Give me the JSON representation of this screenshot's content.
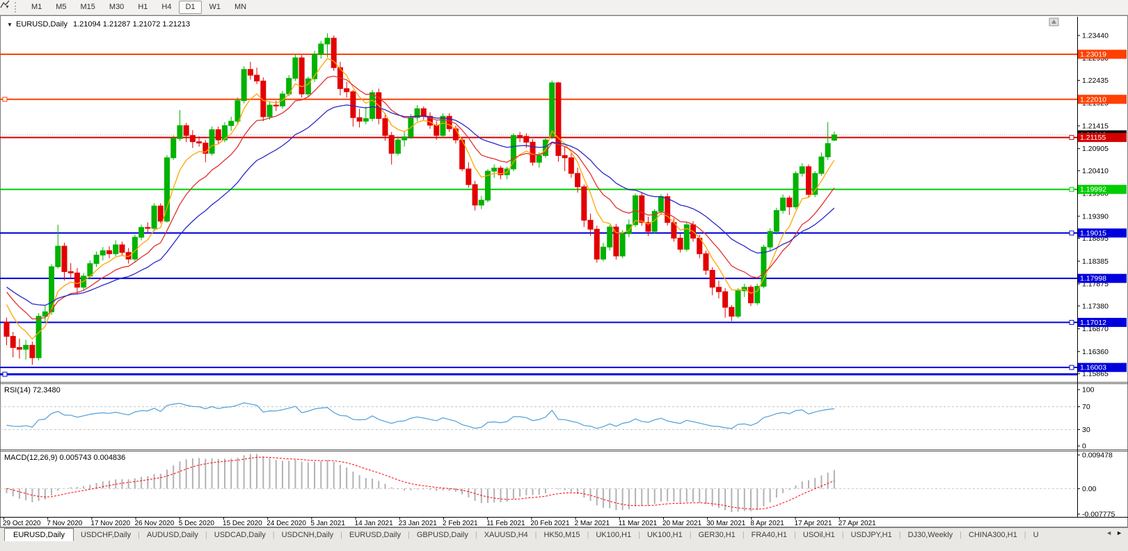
{
  "toolbar": {
    "tool_icon": "line-studies",
    "timeframes": [
      "M1",
      "M5",
      "M15",
      "M30",
      "H1",
      "H4",
      "D1",
      "W1",
      "MN"
    ],
    "active_timeframe": "D1"
  },
  "title": {
    "symbol": "EURUSD,Daily",
    "open": "1.21094",
    "high": "1.21287",
    "low": "1.21072",
    "close": "1.21213",
    "ohlc_text": "1.21094 1.21287 1.21072 1.21213",
    "dropdown_glyph": "▼"
  },
  "axis": {
    "main_ticks": [
      "1.23440",
      "1.22930",
      "1.22435",
      "1.21925",
      "1.21415",
      "1.20905",
      "1.20410",
      "1.19900",
      "1.19390",
      "1.18895",
      "1.18385",
      "1.17875",
      "1.17380",
      "1.16870",
      "1.16360",
      "1.15865"
    ],
    "rsi_ticks": [
      "100",
      "70",
      "30",
      "0"
    ],
    "macd_ticks": [
      "0.009478",
      "0.00",
      "-0.007775"
    ]
  },
  "current_price": {
    "value": "1.21213",
    "box_color": "#000000",
    "line_color": "#b4b4b4"
  },
  "hlines": [
    {
      "price": 1.23019,
      "label": "1.23019",
      "color": "#ff4000",
      "width": 2,
      "handle": "none"
    },
    {
      "price": 1.2201,
      "label": "1.22010",
      "color": "#ff4000",
      "width": 2,
      "handle": "left"
    },
    {
      "price": 1.21155,
      "label": "1.21155",
      "color": "#d40000",
      "width": 2,
      "handle": "right"
    },
    {
      "price": 1.19992,
      "label": "1.19992",
      "color": "#00ce00",
      "width": 2,
      "handle": "right"
    },
    {
      "price": 1.19015,
      "label": "1.19015",
      "color": "#0000dd",
      "width": 2,
      "handle": "right"
    },
    {
      "price": 1.17998,
      "label": "1.17998",
      "color": "#0000dd",
      "width": 2,
      "handle": "none"
    },
    {
      "price": 1.17012,
      "label": "1.17012",
      "color": "#0000dd",
      "width": 2,
      "handle": "right"
    },
    {
      "price": 1.16003,
      "label": "1.16003",
      "color": "#0000dd",
      "width": 2,
      "handle": "right"
    },
    {
      "price": 1.1585,
      "label": "",
      "color": "#0000dd",
      "width": 3,
      "handle": "left"
    }
  ],
  "dates": [
    "29 Oct 2020",
    "7 Nov 2020",
    "17 Nov 2020",
    "26 Nov 2020",
    "5 Dec 2020",
    "15 Dec 2020",
    "24 Dec 2020",
    "5 Jan 2021",
    "14 Jan 2021",
    "23 Jan 2021",
    "2 Feb 2021",
    "11 Feb 2021",
    "20 Feb 2021",
    "2 Mar 2021",
    "11 Mar 2021",
    "20 Mar 2021",
    "30 Mar 2021",
    "8 Apr 2021",
    "17 Apr 2021",
    "27 Apr 2021"
  ],
  "rsi": {
    "label": "RSI(14) 72.3480",
    "period": 14,
    "value": "72.3480",
    "levels": [
      70,
      30
    ],
    "line_color": "#4f9fd8",
    "level_color": "#c4c4c4"
  },
  "macd": {
    "label": "MACD(12,26,9) 0.005743 0.004836",
    "fast": 12,
    "slow": 26,
    "signal_period": 9,
    "macd_value": "0.005743",
    "signal_value": "0.004836",
    "hist_color": "#b2b2b2",
    "signal_color": "#ff0000",
    "zero_line_color": "#c4c4c4"
  },
  "tabs": {
    "items": [
      "EURUSD,Daily",
      "USDCHF,Daily",
      "AUDUSD,Daily",
      "USDCAD,Daily",
      "USDCNH,Daily",
      "EURUSD,Daily",
      "GBPUSD,Daily",
      "XAUUSD,H4",
      "HK50,M15",
      "UK100,H1",
      "UK100,H1",
      "GER30,H1",
      "FRA40,H1",
      "USOil,H1",
      "USDJPY,H1",
      "DJ30,Weekly",
      "CHINA300,H1",
      "U"
    ],
    "active_index": 0,
    "left_arrow": "◄",
    "right_arrow": "►"
  },
  "chart_data": {
    "type": "candlestick",
    "symbol": "EURUSD",
    "timeframe": "Daily",
    "up_color": "#00b200",
    "down_color": "#e30000",
    "moving_averages": [
      {
        "method": "ema",
        "period": 6,
        "color": "#ffa500"
      },
      {
        "method": "ema",
        "period": 13,
        "color": "#e03030"
      },
      {
        "method": "ema",
        "period": 26,
        "color": "#2828c8"
      }
    ],
    "pre_history_closes": [
      1.178,
      1.1785,
      1.179,
      1.174,
      1.172,
      1.1785,
      1.181,
      1.184,
      1.1845,
      1.184,
      1.187,
      1.193,
      1.196,
      1.184,
      1.183,
      1.182,
      1.179,
      1.19,
      1.1935,
      1.194,
      1.1985,
      1.194,
      1.1915,
      1.186,
      1.181,
      1.1815,
      1.179,
      1.1815,
      1.184,
      1.1865,
      1.18,
      1.1755,
      1.172,
      1.1665,
      1.163,
      1.17,
      1.172,
      1.1745,
      1.18,
      1.1785,
      1.176,
      1.1715,
      1.1725,
      1.174,
      1.1715,
      1.172,
      1.177,
      1.183,
      1.181,
      1.1825,
      1.187,
      1.1865,
      1.1825,
      1.184,
      1.186,
      1.183,
      1.179,
      1.1745,
      1.172,
      1.175
    ],
    "candles": [
      [
        1.1702,
        1.1712,
        1.165,
        1.167
      ],
      [
        1.167,
        1.168,
        1.1623,
        1.1645
      ],
      [
        1.1645,
        1.1665,
        1.162,
        1.1641
      ],
      [
        1.1641,
        1.1662,
        1.1618,
        1.165
      ],
      [
        1.165,
        1.1658,
        1.1606,
        1.1622
      ],
      [
        1.1622,
        1.1722,
        1.1616,
        1.1715
      ],
      [
        1.1715,
        1.174,
        1.17,
        1.1725
      ],
      [
        1.1725,
        1.1832,
        1.1718,
        1.1826
      ],
      [
        1.1826,
        1.192,
        1.1822,
        1.1872
      ],
      [
        1.1872,
        1.188,
        1.1795,
        1.1815
      ],
      [
        1.1815,
        1.1834,
        1.18,
        1.1812
      ],
      [
        1.1812,
        1.1823,
        1.1765,
        1.178
      ],
      [
        1.178,
        1.1812,
        1.1772,
        1.1805
      ],
      [
        1.1805,
        1.184,
        1.1798,
        1.1833
      ],
      [
        1.1833,
        1.186,
        1.1825,
        1.1852
      ],
      [
        1.1852,
        1.187,
        1.184,
        1.1862
      ],
      [
        1.1862,
        1.1872,
        1.1845,
        1.1855
      ],
      [
        1.1855,
        1.1885,
        1.185,
        1.1875
      ],
      [
        1.1875,
        1.1882,
        1.185,
        1.1858
      ],
      [
        1.1858,
        1.1868,
        1.1833,
        1.1843
      ],
      [
        1.1843,
        1.1898,
        1.1838,
        1.1892
      ],
      [
        1.1892,
        1.192,
        1.1885,
        1.1914
      ],
      [
        1.1914,
        1.1925,
        1.19,
        1.1912
      ],
      [
        1.1912,
        1.1968,
        1.1905,
        1.1962
      ],
      [
        1.1962,
        1.1968,
        1.1923,
        1.1928
      ],
      [
        1.1928,
        1.2076,
        1.1925,
        1.207
      ],
      [
        1.207,
        1.212,
        1.2065,
        1.2113
      ],
      [
        1.2113,
        1.2177,
        1.2108,
        1.2142
      ],
      [
        1.2142,
        1.2148,
        1.2105,
        1.212
      ],
      [
        1.212,
        1.2132,
        1.2092,
        1.2106
      ],
      [
        1.2106,
        1.2118,
        1.2095,
        1.2103
      ],
      [
        1.2103,
        1.211,
        1.206,
        1.208
      ],
      [
        1.208,
        1.214,
        1.2075,
        1.2133
      ],
      [
        1.2133,
        1.214,
        1.21,
        1.211
      ],
      [
        1.211,
        1.215,
        1.2105,
        1.2142
      ],
      [
        1.2142,
        1.2162,
        1.213,
        1.2152
      ],
      [
        1.2152,
        1.2205,
        1.2145,
        1.2198
      ],
      [
        1.2198,
        1.2275,
        1.2192,
        1.2268
      ],
      [
        1.2268,
        1.2285,
        1.2245,
        1.2255
      ],
      [
        1.2255,
        1.2272,
        1.2235,
        1.2242
      ],
      [
        1.2242,
        1.225,
        1.2152,
        1.2162
      ],
      [
        1.2162,
        1.2195,
        1.2155,
        1.2188
      ],
      [
        1.2188,
        1.2198,
        1.2175,
        1.2186
      ],
      [
        1.2186,
        1.222,
        1.218,
        1.2213
      ],
      [
        1.2213,
        1.2255,
        1.2208,
        1.2248
      ],
      [
        1.2248,
        1.2302,
        1.2242,
        1.2294
      ],
      [
        1.2294,
        1.23,
        1.2205,
        1.2213
      ],
      [
        1.2213,
        1.2252,
        1.2205,
        1.2247
      ],
      [
        1.2247,
        1.231,
        1.224,
        1.2302
      ],
      [
        1.2302,
        1.2332,
        1.2292,
        1.2325
      ],
      [
        1.2325,
        1.2349,
        1.2295,
        1.2338
      ],
      [
        1.2338,
        1.2344,
        1.2265,
        1.2272
      ],
      [
        1.2272,
        1.2285,
        1.221,
        1.2225
      ],
      [
        1.2225,
        1.224,
        1.2205,
        1.2218
      ],
      [
        1.2218,
        1.2222,
        1.214,
        1.216
      ],
      [
        1.216,
        1.218,
        1.2138,
        1.2152
      ],
      [
        1.2152,
        1.2185,
        1.2145,
        1.2158
      ],
      [
        1.2158,
        1.2222,
        1.2152,
        1.2216
      ],
      [
        1.2216,
        1.2225,
        1.2145,
        1.2158
      ],
      [
        1.2158,
        1.217,
        1.2108,
        1.212
      ],
      [
        1.212,
        1.2128,
        1.2055,
        1.208
      ],
      [
        1.208,
        1.2118,
        1.2075,
        1.211
      ],
      [
        1.211,
        1.213,
        1.2095,
        1.2117
      ],
      [
        1.2117,
        1.2168,
        1.2112,
        1.216
      ],
      [
        1.216,
        1.2188,
        1.2152,
        1.218
      ],
      [
        1.218,
        1.2185,
        1.2155,
        1.2163
      ],
      [
        1.2163,
        1.2172,
        1.2135,
        1.2143
      ],
      [
        1.2143,
        1.2152,
        1.211,
        1.212
      ],
      [
        1.212,
        1.217,
        1.2115,
        1.2163
      ],
      [
        1.2163,
        1.217,
        1.2128,
        1.2135
      ],
      [
        1.2135,
        1.2142,
        1.2102,
        1.211
      ],
      [
        1.211,
        1.2115,
        1.204,
        1.2045
      ],
      [
        1.2045,
        1.206,
        1.2003,
        1.201
      ],
      [
        1.201,
        1.2018,
        1.1952,
        1.1964
      ],
      [
        1.1964,
        1.1985,
        1.1955,
        1.1975
      ],
      [
        1.1975,
        1.2045,
        1.197,
        1.204
      ],
      [
        1.204,
        1.2055,
        1.2025,
        1.2047
      ],
      [
        1.2047,
        1.2052,
        1.2022,
        1.2032
      ],
      [
        1.2032,
        1.205,
        1.2022,
        1.2045
      ],
      [
        1.2045,
        1.2125,
        1.204,
        1.212
      ],
      [
        1.212,
        1.2128,
        1.2105,
        1.2118
      ],
      [
        1.2118,
        1.2125,
        1.2092,
        1.2105
      ],
      [
        1.2105,
        1.2112,
        1.2052,
        1.206
      ],
      [
        1.206,
        1.2082,
        1.2048,
        1.2075
      ],
      [
        1.2075,
        1.2115,
        1.207,
        1.211
      ],
      [
        1.2118,
        1.2243,
        1.2112,
        1.2238
      ],
      [
        1.2238,
        1.224,
        1.2061,
        1.2075
      ],
      [
        1.2075,
        1.2095,
        1.204,
        1.207
      ],
      [
        1.207,
        1.208,
        1.2025,
        1.2035
      ],
      [
        1.2035,
        1.2048,
        1.1992,
        1.2005
      ],
      [
        1.2005,
        1.201,
        1.1915,
        1.193
      ],
      [
        1.193,
        1.1945,
        1.1895,
        1.191
      ],
      [
        1.191,
        1.1918,
        1.1835,
        1.1843
      ],
      [
        1.1843,
        1.188,
        1.1838,
        1.187
      ],
      [
        1.187,
        1.192,
        1.1862,
        1.1915
      ],
      [
        1.1915,
        1.1922,
        1.1842,
        1.185
      ],
      [
        1.185,
        1.1908,
        1.1845,
        1.19
      ],
      [
        1.19,
        1.1932,
        1.1892,
        1.192
      ],
      [
        1.192,
        1.199,
        1.1915,
        1.1985
      ],
      [
        1.1985,
        1.1992,
        1.1918,
        1.1925
      ],
      [
        1.1925,
        1.1938,
        1.1895,
        1.1905
      ],
      [
        1.1905,
        1.1955,
        1.19,
        1.195
      ],
      [
        1.195,
        1.1988,
        1.1942,
        1.1983
      ],
      [
        1.1983,
        1.199,
        1.1918,
        1.1925
      ],
      [
        1.1925,
        1.1935,
        1.1882,
        1.189
      ],
      [
        1.189,
        1.19,
        1.1858,
        1.1865
      ],
      [
        1.1865,
        1.1925,
        1.186,
        1.192
      ],
      [
        1.192,
        1.1928,
        1.1882,
        1.189
      ],
      [
        1.189,
        1.1898,
        1.1845,
        1.1855
      ],
      [
        1.1855,
        1.1862,
        1.1808,
        1.1818
      ],
      [
        1.1818,
        1.1825,
        1.1762,
        1.178
      ],
      [
        1.178,
        1.1795,
        1.1755,
        1.177
      ],
      [
        1.177,
        1.1778,
        1.1712,
        1.1735
      ],
      [
        1.1735,
        1.174,
        1.1704,
        1.1715
      ],
      [
        1.1715,
        1.1778,
        1.1711,
        1.1772
      ],
      [
        1.1772,
        1.1788,
        1.1758,
        1.178
      ],
      [
        1.178,
        1.1785,
        1.1738,
        1.1745
      ],
      [
        1.1745,
        1.1788,
        1.174,
        1.1782
      ],
      [
        1.1782,
        1.1875,
        1.1778,
        1.187
      ],
      [
        1.187,
        1.1912,
        1.1862,
        1.1905
      ],
      [
        1.1905,
        1.1958,
        1.1898,
        1.1952
      ],
      [
        1.1952,
        1.1988,
        1.1945,
        1.198
      ],
      [
        1.198,
        1.1985,
        1.1942,
        1.196
      ],
      [
        1.196,
        1.204,
        1.1955,
        1.2035
      ],
      [
        1.2035,
        1.2058,
        1.2028,
        1.205
      ],
      [
        1.205,
        1.2055,
        1.1982,
        1.1988
      ],
      [
        1.1988,
        1.204,
        1.1982,
        1.2035
      ],
      [
        1.2035,
        1.2082,
        1.203,
        1.2072
      ],
      [
        1.2072,
        1.215,
        1.2065,
        1.2102
      ],
      [
        1.21094,
        1.21287,
        1.21072,
        1.21213
      ]
    ]
  }
}
